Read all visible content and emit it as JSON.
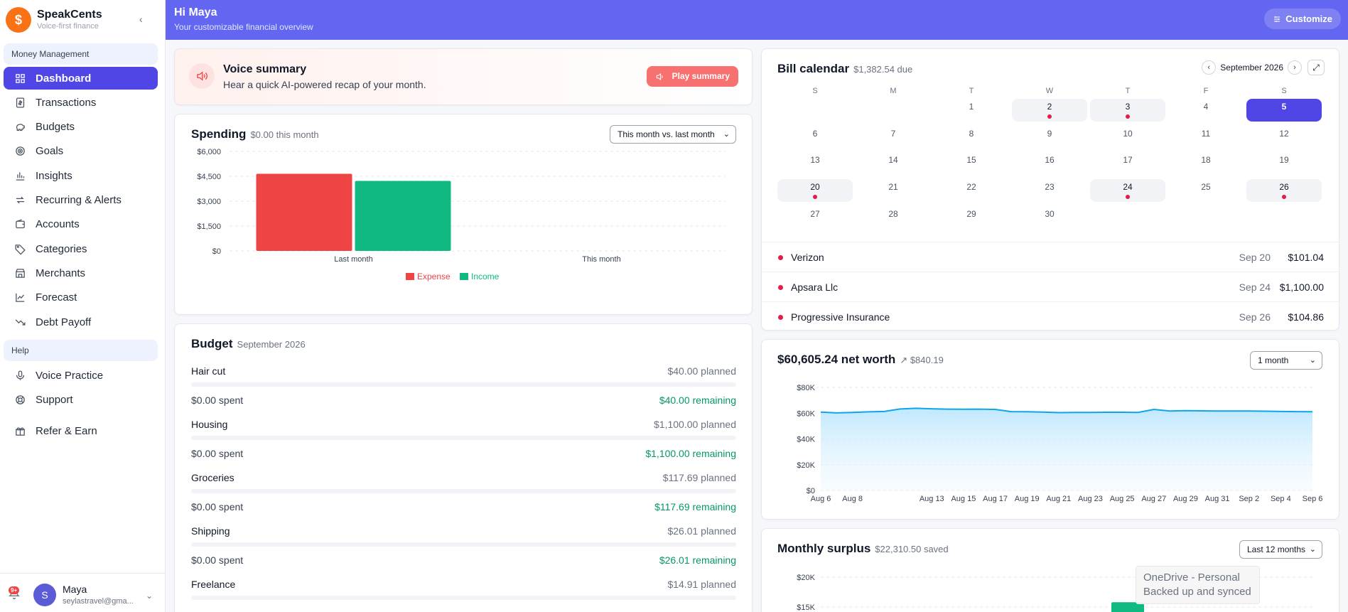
{
  "brand": {
    "name": "SpeakCents",
    "tagline": "Voice-first finance"
  },
  "sidebar": {
    "section_money": "Money Management",
    "section_help": "Help",
    "items": [
      {
        "label": "Dashboard",
        "icon": "grid-icon"
      },
      {
        "label": "Transactions",
        "icon": "receipt-icon"
      },
      {
        "label": "Budgets",
        "icon": "piggy-bank-icon"
      },
      {
        "label": "Goals",
        "icon": "target-icon"
      },
      {
        "label": "Insights",
        "icon": "bar-chart-icon"
      },
      {
        "label": "Recurring & Alerts",
        "icon": "repeat-icon"
      },
      {
        "label": "Accounts",
        "icon": "wallet-icon"
      },
      {
        "label": "Categories",
        "icon": "tag-icon"
      },
      {
        "label": "Merchants",
        "icon": "store-icon"
      },
      {
        "label": "Forecast",
        "icon": "trend-up-icon"
      },
      {
        "label": "Debt Payoff",
        "icon": "trend-down-icon"
      }
    ],
    "help_items": [
      {
        "label": "Voice Practice",
        "icon": "mic-icon"
      },
      {
        "label": "Support",
        "icon": "lifebuoy-icon"
      },
      {
        "label": "Refer & Earn",
        "icon": "gift-icon"
      }
    ]
  },
  "user": {
    "badge": "9+",
    "avatar": "S",
    "name": "Maya",
    "email": "seylastravel@gma..."
  },
  "header": {
    "greeting": "Hi Maya",
    "subtitle": "Your customizable financial overview",
    "customize": "Customize"
  },
  "voice": {
    "title": "Voice summary",
    "subtitle": "Hear a quick AI-powered recap of your month.",
    "button": "Play summary"
  },
  "spending": {
    "title": "Spending",
    "subtitle": "$0.00 this month",
    "select": "This month vs. last month",
    "chart_data": {
      "type": "bar",
      "categories": [
        "Last month",
        "This month"
      ],
      "series": [
        {
          "name": "Expense",
          "values": [
            4650,
            0
          ],
          "color": "#ef4444"
        },
        {
          "name": "Income",
          "values": [
            4220,
            0
          ],
          "color": "#10b981"
        }
      ],
      "ylim": [
        0,
        6000
      ],
      "yticks": [
        "$6,000",
        "$4,500",
        "$3,000",
        "$1,500",
        "$0"
      ],
      "grid": true,
      "legend": "bottom"
    }
  },
  "budget": {
    "title": "Budget",
    "subtitle": "September 2026",
    "rows": [
      {
        "name": "Hair cut",
        "planned": "$40.00 planned",
        "spent": "$0.00 spent",
        "remaining": "$40.00 remaining"
      },
      {
        "name": "Housing",
        "planned": "$1,100.00 planned",
        "spent": "$0.00 spent",
        "remaining": "$1,100.00 remaining"
      },
      {
        "name": "Groceries",
        "planned": "$117.69 planned",
        "spent": "$0.00 spent",
        "remaining": "$117.69 remaining"
      },
      {
        "name": "Shipping",
        "planned": "$26.01 planned",
        "spent": "$0.00 spent",
        "remaining": "$26.01 remaining"
      },
      {
        "name": "Freelance",
        "planned": "$14.91 planned",
        "spent": "",
        "remaining": ""
      }
    ]
  },
  "calendar": {
    "title": "Bill calendar",
    "subtitle": "$1,382.54 due",
    "month": "September 2026",
    "dow": [
      "S",
      "M",
      "T",
      "W",
      "T",
      "F",
      "S"
    ],
    "days": [
      "",
      "",
      "1",
      "2",
      "3",
      "4",
      "5",
      "6",
      "7",
      "8",
      "9",
      "10",
      "11",
      "12",
      "13",
      "14",
      "15",
      "16",
      "17",
      "18",
      "19",
      "20",
      "21",
      "22",
      "23",
      "24",
      "25",
      "26",
      "27",
      "28",
      "29",
      "30",
      "",
      "",
      ""
    ],
    "bill_days": [
      "2",
      "3",
      "20",
      "24",
      "26"
    ],
    "today": "5",
    "bills": [
      {
        "name": "Verizon",
        "date": "Sep 20",
        "amount": "$101.04"
      },
      {
        "name": "Apsara Llc",
        "date": "Sep 24",
        "amount": "$1,100.00"
      },
      {
        "name": "Progressive Insurance",
        "date": "Sep 26",
        "amount": "$104.86"
      }
    ]
  },
  "networth": {
    "title": "$60,605.24 net worth",
    "change": "↗ $840.19",
    "select": "1 month",
    "chart_data": {
      "type": "area",
      "x": [
        "Aug 6",
        "Aug 7",
        "Aug 8",
        "Aug 9",
        "Aug 10",
        "Aug 11",
        "Aug 12",
        "Aug 13",
        "Aug 14",
        "Aug 15",
        "Aug 16",
        "Aug 17",
        "Aug 18",
        "Aug 19",
        "Aug 20",
        "Aug 21",
        "Aug 22",
        "Aug 23",
        "Aug 24",
        "Aug 25",
        "Aug 26",
        "Aug 27",
        "Aug 28",
        "Aug 29",
        "Aug 30",
        "Aug 31",
        "Sep 1",
        "Sep 2",
        "Sep 3",
        "Sep 4",
        "Sep 5",
        "Sep 6"
      ],
      "y": [
        60800,
        60200,
        60600,
        61000,
        61300,
        63200,
        63800,
        63400,
        63100,
        63000,
        63100,
        62900,
        61200,
        61100,
        60800,
        60400,
        60500,
        60600,
        60700,
        60700,
        60600,
        62900,
        61700,
        61900,
        61800,
        61700,
        61700,
        61600,
        61500,
        61300,
        61200,
        61100
      ],
      "xticks": [
        "Aug 6",
        "Aug 8",
        "Aug 13",
        "Aug 15",
        "Aug 17",
        "Aug 19",
        "Aug 21",
        "Aug 23",
        "Aug 25",
        "Aug 27",
        "Aug 29",
        "Aug 31",
        "Sep 2",
        "Sep 4",
        "Sep 6"
      ],
      "yticks": [
        "$80K",
        "$60K",
        "$40K",
        "$20K",
        "$0"
      ],
      "ylim": [
        0,
        80000
      ],
      "grid": true,
      "color": "#0ea5e9"
    }
  },
  "surplus": {
    "title": "Monthly surplus",
    "subtitle": "$22,310.50 saved",
    "select": "Last 12 months",
    "yticks": [
      "$20K",
      "$15K"
    ],
    "chart_data": {
      "type": "bar",
      "values": [
        15800
      ],
      "ylim": [
        10000,
        22000
      ],
      "color": "#10b981"
    }
  },
  "toast": {
    "line1": "OneDrive - Personal",
    "line2": "Backed up and synced"
  }
}
